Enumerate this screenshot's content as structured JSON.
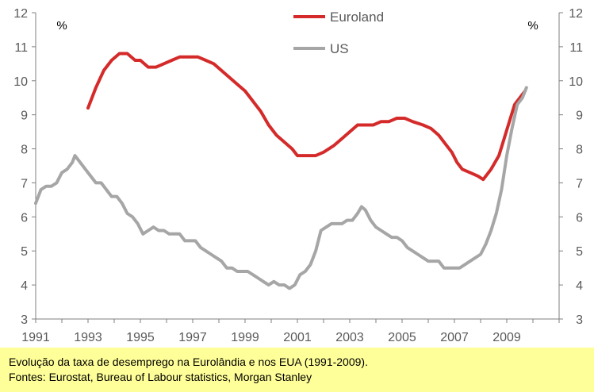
{
  "caption": {
    "line1": "Evolução da taxa de desemprego na Eurolândia e nos EUA (1991-2009).",
    "line2": "Fontes: Eurostat, Bureau of Labour statistics, Morgan Stanley"
  },
  "chart_data": {
    "type": "line",
    "title": "",
    "xlabel": "",
    "ylabel": "",
    "y_unit_left": "%",
    "y_unit_right": "%",
    "xlim": [
      1991,
      2011
    ],
    "ylim": [
      3,
      12
    ],
    "x_ticks": [
      "1991",
      "1993",
      "1995",
      "1997",
      "1999",
      "2001",
      "2003",
      "2005",
      "2007",
      "2009"
    ],
    "y_ticks": [
      "3",
      "4",
      "5",
      "6",
      "7",
      "8",
      "9",
      "10",
      "11",
      "12"
    ],
    "grid": false,
    "legend_position": "top-center",
    "series": [
      {
        "name": "Euroland",
        "color": "#d42a2a",
        "points": [
          [
            1993.0,
            9.2
          ],
          [
            1993.3,
            9.8
          ],
          [
            1993.6,
            10.3
          ],
          [
            1993.9,
            10.6
          ],
          [
            1994.2,
            10.8
          ],
          [
            1994.5,
            10.8
          ],
          [
            1994.8,
            10.6
          ],
          [
            1995.0,
            10.6
          ],
          [
            1995.3,
            10.4
          ],
          [
            1995.6,
            10.4
          ],
          [
            1995.9,
            10.5
          ],
          [
            1996.2,
            10.6
          ],
          [
            1996.5,
            10.7
          ],
          [
            1996.9,
            10.7
          ],
          [
            1997.2,
            10.7
          ],
          [
            1997.5,
            10.6
          ],
          [
            1997.8,
            10.5
          ],
          [
            1998.1,
            10.3
          ],
          [
            1998.4,
            10.1
          ],
          [
            1998.7,
            9.9
          ],
          [
            1999.0,
            9.7
          ],
          [
            1999.3,
            9.4
          ],
          [
            1999.6,
            9.1
          ],
          [
            1999.9,
            8.7
          ],
          [
            2000.2,
            8.4
          ],
          [
            2000.5,
            8.2
          ],
          [
            2000.8,
            8.0
          ],
          [
            2001.0,
            7.8
          ],
          [
            2001.3,
            7.8
          ],
          [
            2001.7,
            7.8
          ],
          [
            2002.0,
            7.9
          ],
          [
            2002.4,
            8.1
          ],
          [
            2002.7,
            8.3
          ],
          [
            2003.0,
            8.5
          ],
          [
            2003.3,
            8.7
          ],
          [
            2003.6,
            8.7
          ],
          [
            2003.9,
            8.7
          ],
          [
            2004.2,
            8.8
          ],
          [
            2004.5,
            8.8
          ],
          [
            2004.8,
            8.9
          ],
          [
            2005.1,
            8.9
          ],
          [
            2005.4,
            8.8
          ],
          [
            2005.8,
            8.7
          ],
          [
            2006.1,
            8.6
          ],
          [
            2006.4,
            8.4
          ],
          [
            2006.7,
            8.1
          ],
          [
            2006.9,
            7.9
          ],
          [
            2007.1,
            7.6
          ],
          [
            2007.3,
            7.4
          ],
          [
            2007.6,
            7.3
          ],
          [
            2007.9,
            7.2
          ],
          [
            2008.1,
            7.1
          ],
          [
            2008.4,
            7.4
          ],
          [
            2008.7,
            7.8
          ],
          [
            2008.9,
            8.3
          ],
          [
            2009.1,
            8.8
          ],
          [
            2009.3,
            9.3
          ],
          [
            2009.5,
            9.5
          ],
          [
            2009.7,
            9.7
          ]
        ]
      },
      {
        "name": "US",
        "color": "#a6a6a6",
        "points": [
          [
            1991.0,
            6.4
          ],
          [
            1991.2,
            6.8
          ],
          [
            1991.4,
            6.9
          ],
          [
            1991.6,
            6.9
          ],
          [
            1991.8,
            7.0
          ],
          [
            1992.0,
            7.3
          ],
          [
            1992.2,
            7.4
          ],
          [
            1992.4,
            7.6
          ],
          [
            1992.5,
            7.8
          ],
          [
            1992.7,
            7.6
          ],
          [
            1992.9,
            7.4
          ],
          [
            1993.1,
            7.2
          ],
          [
            1993.3,
            7.0
          ],
          [
            1993.5,
            7.0
          ],
          [
            1993.7,
            6.8
          ],
          [
            1993.9,
            6.6
          ],
          [
            1994.1,
            6.6
          ],
          [
            1994.3,
            6.4
          ],
          [
            1994.5,
            6.1
          ],
          [
            1994.7,
            6.0
          ],
          [
            1994.9,
            5.8
          ],
          [
            1995.1,
            5.5
          ],
          [
            1995.3,
            5.6
          ],
          [
            1995.5,
            5.7
          ],
          [
            1995.7,
            5.6
          ],
          [
            1995.9,
            5.6
          ],
          [
            1996.1,
            5.5
          ],
          [
            1996.3,
            5.5
          ],
          [
            1996.5,
            5.5
          ],
          [
            1996.7,
            5.3
          ],
          [
            1996.9,
            5.3
          ],
          [
            1997.1,
            5.3
          ],
          [
            1997.3,
            5.1
          ],
          [
            1997.5,
            5.0
          ],
          [
            1997.7,
            4.9
          ],
          [
            1997.9,
            4.8
          ],
          [
            1998.1,
            4.7
          ],
          [
            1998.3,
            4.5
          ],
          [
            1998.5,
            4.5
          ],
          [
            1998.7,
            4.4
          ],
          [
            1998.9,
            4.4
          ],
          [
            1999.1,
            4.4
          ],
          [
            1999.3,
            4.3
          ],
          [
            1999.5,
            4.2
          ],
          [
            1999.7,
            4.1
          ],
          [
            1999.9,
            4.0
          ],
          [
            2000.1,
            4.1
          ],
          [
            2000.3,
            4.0
          ],
          [
            2000.5,
            4.0
          ],
          [
            2000.7,
            3.9
          ],
          [
            2000.9,
            4.0
          ],
          [
            2001.1,
            4.3
          ],
          [
            2001.3,
            4.4
          ],
          [
            2001.5,
            4.6
          ],
          [
            2001.7,
            5.0
          ],
          [
            2001.9,
            5.6
          ],
          [
            2002.1,
            5.7
          ],
          [
            2002.3,
            5.8
          ],
          [
            2002.5,
            5.8
          ],
          [
            2002.7,
            5.8
          ],
          [
            2002.9,
            5.9
          ],
          [
            2003.1,
            5.9
          ],
          [
            2003.3,
            6.1
          ],
          [
            2003.45,
            6.3
          ],
          [
            2003.6,
            6.2
          ],
          [
            2003.8,
            5.9
          ],
          [
            2004.0,
            5.7
          ],
          [
            2004.2,
            5.6
          ],
          [
            2004.4,
            5.5
          ],
          [
            2004.6,
            5.4
          ],
          [
            2004.8,
            5.4
          ],
          [
            2005.0,
            5.3
          ],
          [
            2005.2,
            5.1
          ],
          [
            2005.4,
            5.0
          ],
          [
            2005.6,
            4.9
          ],
          [
            2005.8,
            4.8
          ],
          [
            2006.0,
            4.7
          ],
          [
            2006.2,
            4.7
          ],
          [
            2006.4,
            4.7
          ],
          [
            2006.6,
            4.5
          ],
          [
            2006.8,
            4.5
          ],
          [
            2007.0,
            4.5
          ],
          [
            2007.2,
            4.5
          ],
          [
            2007.4,
            4.6
          ],
          [
            2007.6,
            4.7
          ],
          [
            2007.8,
            4.8
          ],
          [
            2008.0,
            4.9
          ],
          [
            2008.2,
            5.2
          ],
          [
            2008.4,
            5.6
          ],
          [
            2008.6,
            6.1
          ],
          [
            2008.8,
            6.8
          ],
          [
            2009.0,
            7.8
          ],
          [
            2009.2,
            8.6
          ],
          [
            2009.4,
            9.3
          ],
          [
            2009.6,
            9.5
          ],
          [
            2009.75,
            9.8
          ]
        ]
      }
    ]
  }
}
